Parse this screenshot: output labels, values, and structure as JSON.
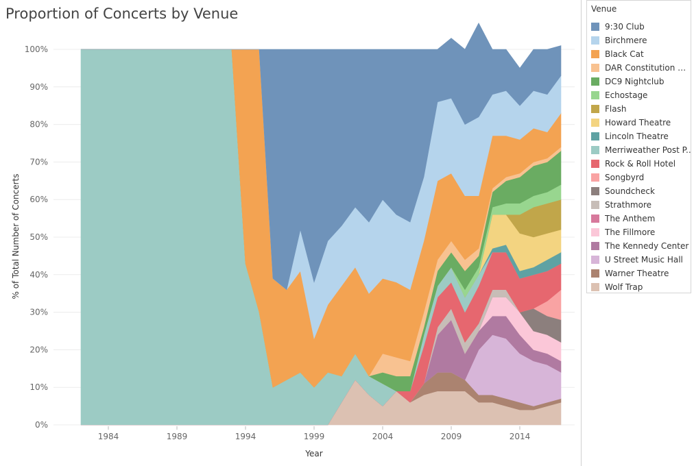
{
  "chart_data": {
    "type": "area",
    "stacked": "percent",
    "title": "Proportion of Concerts by Venue",
    "xlabel": "Year",
    "ylabel": "% of Total Number of Concerts",
    "xlim": [
      1980,
      2018
    ],
    "ylim": [
      0,
      100
    ],
    "x_ticks": [
      1984,
      1989,
      1994,
      1999,
      2004,
      2009,
      2014
    ],
    "y_ticks": [
      "0%",
      "10%",
      "20%",
      "30%",
      "40%",
      "50%",
      "60%",
      "70%",
      "80%",
      "90%",
      "100%"
    ],
    "grid": true,
    "legend_title": "Venue",
    "legend_position": "right",
    "x": [
      1982,
      1993,
      1994,
      1995,
      1996,
      1997,
      1998,
      1999,
      2000,
      2001,
      2002,
      2003,
      2004,
      2005,
      2006,
      2007,
      2008,
      2009,
      2010,
      2011,
      2012,
      2013,
      2014,
      2015,
      2016,
      2017
    ],
    "series": [
      {
        "name": "Wolf Trap",
        "color": "#dcc1b2",
        "values": [
          0,
          0,
          0,
          0,
          0,
          0,
          0,
          0,
          0,
          6,
          12,
          8,
          5,
          9,
          6,
          8,
          9,
          9,
          9,
          6,
          6,
          5,
          4,
          4,
          5,
          6
        ]
      },
      {
        "name": "Warner Theatre",
        "color": "#ab8370",
        "values": [
          0,
          0,
          0,
          0,
          0,
          0,
          0,
          0,
          0,
          0,
          0,
          0,
          0,
          0,
          0,
          3,
          5,
          5,
          3,
          2,
          2,
          2,
          2,
          1,
          1,
          1
        ]
      },
      {
        "name": "U Street Music Hall",
        "color": "#d7b5d8",
        "values": [
          0,
          0,
          0,
          0,
          0,
          0,
          0,
          0,
          0,
          0,
          0,
          0,
          0,
          0,
          0,
          0,
          0,
          0,
          0,
          12,
          16,
          16,
          13,
          12,
          10,
          7
        ]
      },
      {
        "name": "The Kennedy Center",
        "color": "#b07aa1",
        "values": [
          0,
          0,
          0,
          0,
          0,
          0,
          0,
          0,
          0,
          0,
          0,
          0,
          0,
          0,
          0,
          0,
          10,
          14,
          7,
          5,
          5,
          6,
          5,
          3,
          3,
          3
        ]
      },
      {
        "name": "The Fillmore",
        "color": "#fbc7d8",
        "values": [
          0,
          0,
          0,
          0,
          0,
          0,
          0,
          0,
          0,
          0,
          0,
          0,
          0,
          0,
          0,
          0,
          0,
          0,
          0,
          0,
          5,
          5,
          6,
          5,
          5,
          5
        ]
      },
      {
        "name": "The Anthem",
        "color": "#d7799c",
        "values": [
          0,
          0,
          0,
          0,
          0,
          0,
          0,
          0,
          0,
          0,
          0,
          0,
          0,
          0,
          0,
          0,
          0,
          0,
          0,
          0,
          0,
          0,
          0,
          0,
          0,
          0
        ]
      },
      {
        "name": "Strathmore",
        "color": "#c7bdb7",
        "values": [
          0,
          0,
          0,
          0,
          0,
          0,
          0,
          0,
          0,
          0,
          0,
          0,
          0,
          0,
          0,
          0,
          2,
          3,
          3,
          2,
          2,
          2,
          0,
          0,
          0,
          0
        ]
      },
      {
        "name": "Soundcheck",
        "color": "#8c7f7d",
        "values": [
          0,
          0,
          0,
          0,
          0,
          0,
          0,
          0,
          0,
          0,
          0,
          0,
          0,
          0,
          0,
          0,
          0,
          0,
          0,
          0,
          0,
          0,
          0,
          6,
          5,
          6
        ]
      },
      {
        "name": "Songbyrd",
        "color": "#f9a3a3",
        "values": [
          0,
          0,
          0,
          0,
          0,
          0,
          0,
          0,
          0,
          0,
          0,
          0,
          0,
          0,
          0,
          0,
          0,
          0,
          0,
          0,
          0,
          0,
          0,
          0,
          4,
          8
        ]
      },
      {
        "name": "Rock & Roll Hotel",
        "color": "#e6676f",
        "values": [
          0,
          0,
          0,
          0,
          0,
          0,
          0,
          0,
          0,
          0,
          0,
          0,
          0,
          0,
          3,
          10,
          8,
          7,
          8,
          10,
          10,
          10,
          9,
          9,
          8,
          7
        ]
      },
      {
        "name": "Merriweather Post P..",
        "color": "#9ccbc4",
        "values": [
          100,
          100,
          43,
          30,
          10,
          12,
          14,
          10,
          14,
          7,
          7,
          5,
          6,
          0,
          0,
          3,
          3,
          4,
          4,
          3,
          0,
          0,
          0,
          0,
          0,
          0
        ]
      },
      {
        "name": "Lincoln Theatre",
        "color": "#5fa2a3",
        "values": [
          0,
          0,
          0,
          0,
          0,
          0,
          0,
          0,
          0,
          0,
          0,
          0,
          0,
          0,
          0,
          0,
          0,
          0,
          0,
          0,
          1,
          2,
          2,
          2,
          3,
          3
        ]
      },
      {
        "name": "Howard Theatre",
        "color": "#f3d481",
        "values": [
          0,
          0,
          0,
          0,
          0,
          0,
          0,
          0,
          0,
          0,
          0,
          0,
          0,
          0,
          0,
          0,
          0,
          0,
          0,
          0,
          9,
          8,
          10,
          8,
          7,
          6
        ]
      },
      {
        "name": "Flash",
        "color": "#c1a64a",
        "values": [
          0,
          0,
          0,
          0,
          0,
          0,
          0,
          0,
          0,
          0,
          0,
          0,
          0,
          0,
          0,
          0,
          0,
          0,
          0,
          0,
          0,
          0,
          5,
          8,
          8,
          8
        ]
      },
      {
        "name": "Echostage",
        "color": "#98d68f",
        "values": [
          0,
          0,
          0,
          0,
          0,
          0,
          0,
          0,
          0,
          0,
          0,
          0,
          0,
          0,
          0,
          0,
          0,
          0,
          2,
          2,
          2,
          3,
          3,
          3,
          3,
          4
        ]
      },
      {
        "name": "DC9 Nightclub",
        "color": "#6aac62",
        "values": [
          0,
          0,
          0,
          0,
          0,
          0,
          0,
          0,
          0,
          0,
          0,
          0,
          3,
          4,
          4,
          2,
          4,
          4,
          5,
          3,
          4,
          6,
          7,
          8,
          8,
          9
        ]
      },
      {
        "name": "DAR Constitution Hall",
        "color": "#f8c291",
        "values": [
          0,
          0,
          0,
          0,
          0,
          0,
          0,
          0,
          0,
          0,
          0,
          0,
          5,
          5,
          4,
          4,
          3,
          3,
          3,
          2,
          1,
          1,
          1,
          1,
          1,
          1
        ]
      },
      {
        "name": "Black Cat",
        "color": "#f3a352",
        "values": [
          0,
          0,
          57,
          70,
          29,
          24,
          27,
          13,
          18,
          24,
          23,
          22,
          20,
          20,
          19,
          19,
          21,
          18,
          17,
          14,
          14,
          11,
          9,
          9,
          7,
          9
        ]
      },
      {
        "name": "Birchmere",
        "color": "#b5d4ec",
        "values": [
          0,
          0,
          0,
          0,
          0,
          0,
          11,
          15,
          17,
          16,
          16,
          19,
          21,
          18,
          18,
          17,
          21,
          20,
          19,
          21,
          11,
          12,
          9,
          10,
          10,
          10
        ]
      },
      {
        "name": "9:30 Club",
        "color": "#6f93ba",
        "values": [
          0,
          0,
          0,
          0,
          61,
          64,
          48,
          62,
          51,
          47,
          42,
          46,
          40,
          44,
          46,
          34,
          14,
          16,
          20,
          25,
          12,
          11,
          10,
          11,
          12,
          8
        ]
      }
    ]
  }
}
